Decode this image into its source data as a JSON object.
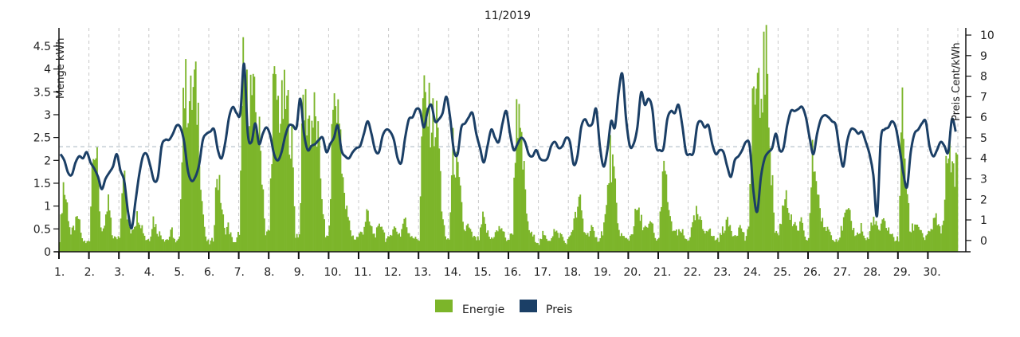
{
  "chart_data": {
    "type": "bar",
    "title": "11/2019",
    "ylabel": "Menge kWh",
    "y2label": "Preis Cent/kWh",
    "ylim": [
      0,
      4.9
    ],
    "y2lim": [
      -0.55,
      10.35
    ],
    "yticks": [
      "0",
      "0.5",
      "1",
      "1.5",
      "2",
      "2.5",
      "3",
      "3.5",
      "4",
      "4.5"
    ],
    "y2ticks": [
      "0",
      "1",
      "2",
      "3",
      "4",
      "5",
      "6",
      "7",
      "8",
      "9",
      "10"
    ],
    "reference_line_y": 2.3,
    "grid": "vertical dashed lines at day boundaries",
    "legend_position": "bottom-center",
    "colors": {
      "energy": "#7cb52a",
      "price": "#1b3f66",
      "grid": "#c8c8c8",
      "axis": "#111111"
    },
    "categories": [
      "1.",
      "2.",
      "3.",
      "4.",
      "5.",
      "6.",
      "7.",
      "8.",
      "9.",
      "10.",
      "11.",
      "12.",
      "13.",
      "14.",
      "15.",
      "16.",
      "17.",
      "18.",
      "19.",
      "20.",
      "21.",
      "22.",
      "23.",
      "24.",
      "25.",
      "26.",
      "27.",
      "28.",
      "29.",
      "30."
    ],
    "series": [
      {
        "name": "Energie",
        "kind": "bar",
        "axis": "left",
        "values_per_day": [
          [
            0.3,
            1.6,
            1.1,
            0.4,
            0.6,
            0.8,
            0.3,
            0.2
          ],
          [
            0.3,
            2.9,
            2.0,
            0.6,
            0.5,
            1.2,
            0.4,
            0.3
          ],
          [
            0.4,
            2.1,
            0.8,
            0.5,
            0.7,
            0.9,
            0.6,
            0.3
          ],
          [
            0.3,
            0.8,
            0.5,
            0.4,
            0.3,
            0.3,
            0.5,
            0.2
          ],
          [
            0.3,
            3.9,
            3.7,
            3.5,
            3.9,
            3.3,
            1.2,
            0.3
          ],
          [
            0.2,
            0.3,
            1.9,
            1.3,
            0.5,
            0.6,
            0.3,
            0.2
          ],
          [
            0.5,
            4.2,
            3.6,
            3.8,
            3.4,
            3.0,
            2.0,
            0.4
          ],
          [
            0.5,
            3.8,
            3.6,
            3.2,
            3.5,
            3.3,
            2.5,
            0.4
          ],
          [
            0.4,
            3.5,
            3.3,
            3.0,
            3.2,
            2.6,
            1.4,
            0.3
          ],
          [
            0.5,
            3.6,
            3.4,
            2.9,
            1.2,
            0.8,
            0.4,
            0.3
          ],
          [
            0.4,
            0.5,
            0.9,
            0.6,
            0.4,
            0.5,
            0.7,
            0.3
          ],
          [
            0.3,
            0.6,
            0.5,
            0.4,
            0.8,
            0.5,
            0.4,
            0.3
          ],
          [
            0.3,
            3.6,
            3.3,
            3.2,
            3.0,
            3.0,
            1.1,
            0.3
          ],
          [
            0.3,
            2.4,
            2.0,
            1.3,
            0.5,
            0.6,
            0.4,
            0.3
          ],
          [
            0.3,
            0.8,
            0.5,
            0.3,
            0.4,
            0.5,
            0.6,
            0.3
          ],
          [
            0.3,
            0.5,
            3.6,
            2.6,
            1.8,
            0.6,
            0.4,
            0.3
          ],
          [
            0.2,
            0.4,
            0.3,
            0.3,
            0.5,
            0.4,
            0.4,
            0.2
          ],
          [
            0.3,
            0.6,
            0.9,
            1.2,
            0.5,
            0.4,
            0.6,
            0.3
          ],
          [
            0.3,
            0.5,
            1.0,
            2.3,
            1.8,
            0.6,
            0.4,
            0.3
          ],
          [
            0.3,
            0.5,
            1.0,
            0.8,
            0.6,
            0.5,
            0.7,
            0.3
          ],
          [
            0.3,
            1.9,
            1.6,
            0.7,
            0.5,
            0.4,
            0.5,
            0.3
          ],
          [
            0.3,
            0.6,
            0.9,
            0.7,
            0.5,
            0.6,
            0.4,
            0.3
          ],
          [
            0.3,
            0.5,
            0.7,
            0.6,
            0.4,
            0.5,
            0.6,
            0.3
          ],
          [
            0.5,
            3.7,
            3.6,
            3.5,
            4.4,
            4.3,
            2.0,
            0.5
          ],
          [
            0.4,
            1.0,
            1.5,
            0.8,
            0.6,
            0.5,
            0.7,
            0.3
          ],
          [
            0.3,
            2.2,
            1.8,
            1.0,
            0.5,
            0.6,
            0.4,
            0.3
          ],
          [
            0.3,
            0.6,
            0.9,
            0.8,
            0.5,
            0.4,
            0.6,
            0.3
          ],
          [
            0.3,
            0.8,
            0.6,
            0.5,
            0.7,
            0.6,
            0.4,
            0.3
          ],
          [
            0.3,
            3.4,
            1.8,
            0.5,
            0.6,
            0.7,
            0.5,
            0.3
          ],
          [
            0.4,
            0.6,
            0.8,
            0.5,
            0.6,
            2.6,
            2.2,
            2.0
          ]
        ]
      },
      {
        "name": "Preis",
        "kind": "line",
        "axis": "right",
        "values_per_day": [
          [
            4.2,
            3.9,
            3.3,
            3.2,
            3.8,
            4.1,
            4.0,
            4.3
          ],
          [
            3.8,
            3.5,
            3.1,
            2.5,
            3.0,
            3.3,
            3.6,
            4.2
          ],
          [
            3.4,
            2.9,
            1.4,
            0.6,
            1.9,
            3.2,
            4.1,
            4.2
          ],
          [
            3.6,
            2.9,
            3.1,
            4.6,
            4.9,
            4.9,
            5.2,
            5.6
          ],
          [
            5.5,
            4.8,
            3.4,
            2.9,
            3.1,
            3.7,
            4.9,
            5.2
          ],
          [
            5.3,
            5.4,
            4.4,
            4.0,
            4.8,
            6.0,
            6.5,
            6.2
          ],
          [
            6.2,
            8.6,
            5.2,
            4.8,
            5.7,
            4.7,
            5.2,
            5.5
          ],
          [
            5.1,
            4.2,
            3.9,
            4.3,
            5.1,
            5.6,
            5.6,
            5.5
          ],
          [
            6.9,
            5.2,
            4.4,
            4.6,
            4.7,
            4.9,
            5.0,
            4.3
          ],
          [
            4.7,
            5.0,
            5.6,
            4.4,
            4.1,
            4.0,
            4.3,
            4.5
          ],
          [
            4.6,
            5.2,
            5.8,
            5.2,
            4.4,
            4.3,
            5.1,
            5.4
          ],
          [
            5.3,
            4.9,
            4.0,
            3.8,
            5.0,
            5.9,
            6.0,
            6.4
          ],
          [
            6.3,
            5.5,
            6.3,
            6.6,
            5.8,
            5.9,
            6.2,
            7.0
          ],
          [
            6.0,
            4.4,
            4.2,
            5.5,
            5.7,
            6.0,
            6.2,
            5.2
          ],
          [
            4.5,
            3.8,
            4.6,
            5.4,
            5.0,
            4.8,
            5.7,
            6.3
          ],
          [
            5.2,
            4.4,
            4.7,
            5.0,
            4.8,
            4.2,
            4.1,
            4.4
          ],
          [
            4.0,
            3.9,
            4.0,
            4.6,
            4.8,
            4.5,
            4.6,
            5.0
          ],
          [
            4.8,
            3.7,
            4.1,
            5.5,
            5.9,
            5.6,
            5.7,
            6.4
          ],
          [
            4.6,
            3.6,
            4.4,
            5.8,
            5.5,
            7.2,
            8.1,
            5.9
          ],
          [
            4.6,
            4.7,
            5.5,
            7.2,
            6.6,
            6.9,
            6.4,
            4.6
          ],
          [
            4.4,
            4.5,
            5.9,
            6.3,
            6.2,
            6.6,
            5.6,
            4.3
          ],
          [
            4.2,
            4.3,
            5.6,
            5.8,
            5.5,
            5.6,
            4.7,
            4.2
          ],
          [
            4.4,
            4.3,
            3.6,
            3.1,
            3.9,
            4.1,
            4.4,
            4.8
          ],
          [
            4.6,
            2.4,
            1.4,
            3.1,
            4.0,
            4.3,
            4.5,
            5.2
          ],
          [
            4.4,
            4.5,
            5.6,
            6.3,
            6.3,
            6.4,
            6.5,
            6.0
          ],
          [
            5.0,
            4.2,
            5.2,
            5.9,
            6.1,
            6.0,
            5.8,
            5.6
          ],
          [
            4.4,
            3.6,
            4.8,
            5.4,
            5.4,
            5.2,
            5.3,
            4.8
          ],
          [
            4.2,
            3.2,
            1.2,
            4.9,
            5.4,
            5.5,
            5.8,
            5.5
          ],
          [
            4.5,
            3.3,
            2.6,
            4.3,
            5.2,
            5.4,
            5.7,
            5.8
          ],
          [
            4.6,
            4.1,
            4.4,
            4.8,
            4.6,
            4.3,
            5.9,
            5.3
          ]
        ]
      }
    ]
  }
}
